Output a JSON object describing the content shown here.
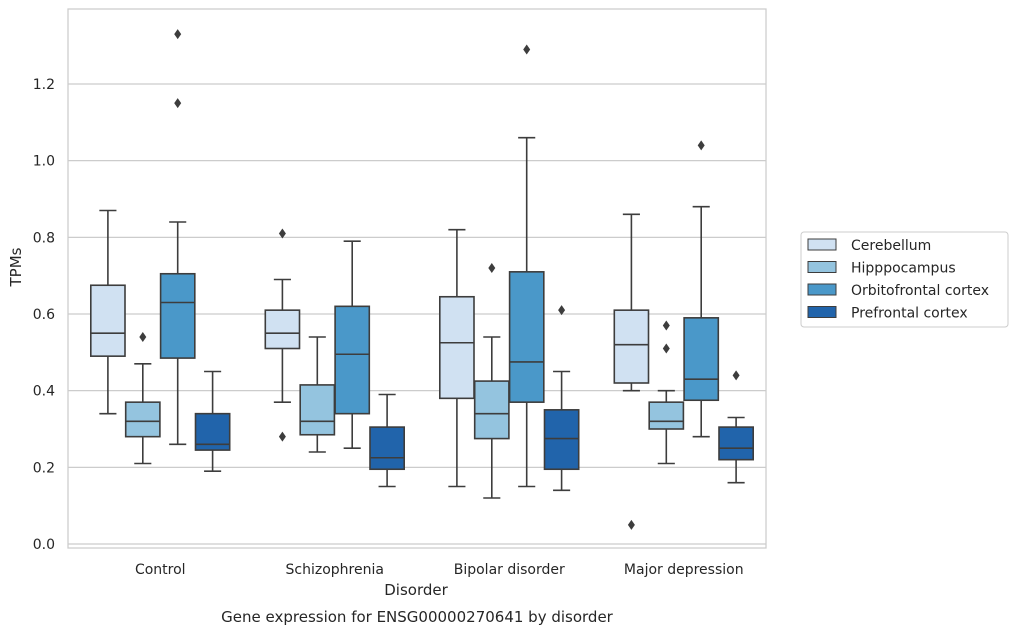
{
  "chart_data": {
    "type": "box",
    "caption": "Gene expression for ENSG00000270641 by disorder",
    "xlabel": "Disorder",
    "ylabel": "TPMs",
    "ylim": [
      -0.01,
      1.4
    ],
    "yticks": [
      0.0,
      0.2,
      0.4,
      0.6,
      0.8,
      1.0,
      1.2
    ],
    "ytick_labels": [
      "0.0",
      "0.2",
      "0.4",
      "0.6",
      "0.8",
      "1.0",
      "1.2"
    ],
    "grid": "horizontal",
    "legend_position": "right",
    "categories": [
      "Control",
      "Schizophrenia",
      "Bipolar disorder",
      "Major depression"
    ],
    "series": [
      {
        "name": "Cerebellum",
        "color": "#d0e1f2",
        "boxes": [
          {
            "whislo": 0.34,
            "q1": 0.49,
            "med": 0.55,
            "q3": 0.675,
            "whishi": 0.87,
            "fliers": []
          },
          {
            "whislo": 0.37,
            "q1": 0.51,
            "med": 0.55,
            "q3": 0.61,
            "whishi": 0.69,
            "fliers": [
              0.81,
              0.28
            ]
          },
          {
            "whislo": 0.15,
            "q1": 0.38,
            "med": 0.525,
            "q3": 0.645,
            "whishi": 0.82,
            "fliers": []
          },
          {
            "whislo": 0.4,
            "q1": 0.42,
            "med": 0.52,
            "q3": 0.61,
            "whishi": 0.86,
            "fliers": [
              0.05
            ]
          }
        ]
      },
      {
        "name": "Hipppocampus",
        "color": "#94c4df",
        "boxes": [
          {
            "whislo": 0.21,
            "q1": 0.28,
            "med": 0.32,
            "q3": 0.37,
            "whishi": 0.47,
            "fliers": [
              0.54
            ]
          },
          {
            "whislo": 0.24,
            "q1": 0.285,
            "med": 0.32,
            "q3": 0.415,
            "whishi": 0.54,
            "fliers": []
          },
          {
            "whislo": 0.12,
            "q1": 0.275,
            "med": 0.34,
            "q3": 0.425,
            "whishi": 0.54,
            "fliers": [
              0.72
            ]
          },
          {
            "whislo": 0.21,
            "q1": 0.3,
            "med": 0.32,
            "q3": 0.37,
            "whishi": 0.4,
            "fliers": [
              0.57,
              0.51
            ]
          }
        ]
      },
      {
        "name": "Orbitofrontal cortex",
        "color": "#4a98c9",
        "boxes": [
          {
            "whislo": 0.26,
            "q1": 0.485,
            "med": 0.63,
            "q3": 0.705,
            "whishi": 0.84,
            "fliers": [
              1.33,
              1.15
            ]
          },
          {
            "whislo": 0.25,
            "q1": 0.34,
            "med": 0.495,
            "q3": 0.62,
            "whishi": 0.79,
            "fliers": []
          },
          {
            "whislo": 0.15,
            "q1": 0.37,
            "med": 0.475,
            "q3": 0.71,
            "whishi": 1.06,
            "fliers": [
              1.29
            ]
          },
          {
            "whislo": 0.28,
            "q1": 0.375,
            "med": 0.43,
            "q3": 0.59,
            "whishi": 0.88,
            "fliers": [
              1.04
            ]
          }
        ]
      },
      {
        "name": "Prefrontal cortex",
        "color": "#2164ab",
        "boxes": [
          {
            "whislo": 0.19,
            "q1": 0.245,
            "med": 0.26,
            "q3": 0.34,
            "whishi": 0.45,
            "fliers": []
          },
          {
            "whislo": 0.15,
            "q1": 0.195,
            "med": 0.225,
            "q3": 0.305,
            "whishi": 0.39,
            "fliers": []
          },
          {
            "whislo": 0.14,
            "q1": 0.195,
            "med": 0.275,
            "q3": 0.35,
            "whishi": 0.45,
            "fliers": [
              0.61
            ]
          },
          {
            "whislo": 0.16,
            "q1": 0.22,
            "med": 0.25,
            "q3": 0.305,
            "whishi": 0.33,
            "fliers": [
              0.44
            ]
          }
        ]
      }
    ]
  }
}
